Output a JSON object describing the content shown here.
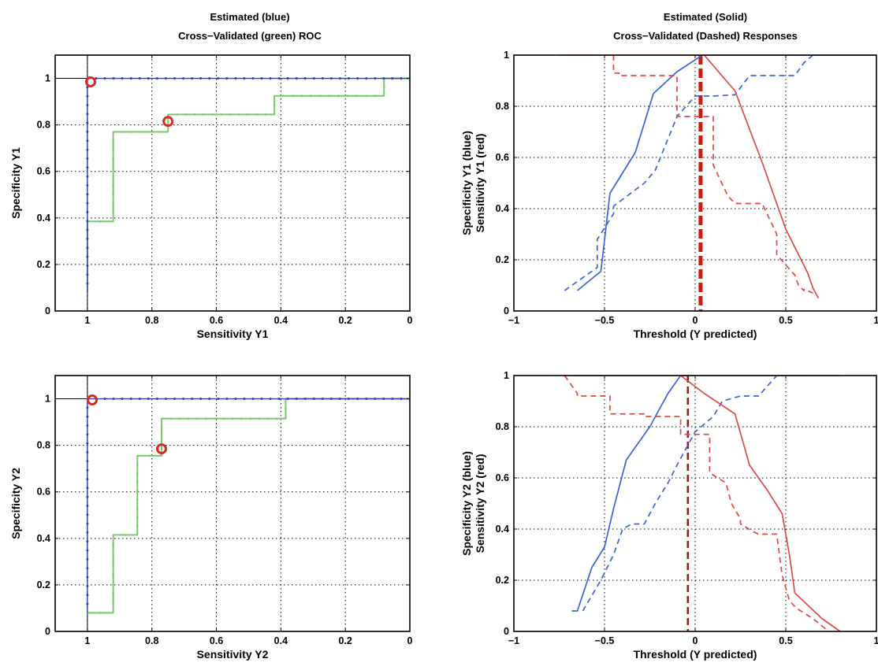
{
  "roc_title": {
    "line1": "Estimated (blue)",
    "line2": "Cross−Validated (green) ROC"
  },
  "resp_title": {
    "line1": "Estimated (Solid)",
    "line2": "Cross−Validated (Dashed) Responses"
  },
  "colors": {
    "estimated_roc": "#2a3fbf",
    "crossval_roc": "#79c96b",
    "specificity": "#3b63d6",
    "sensitivity": "#e04848",
    "marker": "#d82a20",
    "threshold_y1": "#cc1a10",
    "threshold_y2": "#a01a10"
  },
  "chart_data": [
    {
      "type": "line",
      "xlabel": "Sensitivity Y1",
      "ylabel": "Specificity Y1",
      "xlim": [
        1.1,
        0
      ],
      "ylim": [
        0,
        1.1
      ],
      "xticks": [
        "1",
        "0.8",
        "0.6",
        "0.4",
        "0.2",
        "0"
      ],
      "yticks": [
        "0",
        "0.2",
        "0.4",
        "0.6",
        "0.8",
        "1"
      ],
      "grid": true,
      "series": [
        {
          "style": "estimated",
          "x": [
            1,
            1,
            0
          ],
          "y": [
            0.08,
            1,
            1
          ]
        },
        {
          "style": "crossval",
          "x": [
            1,
            1,
            0.92,
            0.92,
            0.75,
            0.75,
            0.42,
            0.42,
            0.08,
            0.08,
            0
          ],
          "y": [
            0.08,
            0.385,
            0.385,
            0.77,
            0.77,
            0.845,
            0.845,
            0.925,
            0.925,
            1,
            1
          ]
        }
      ],
      "markers": [
        {
          "x": 0.99,
          "y": 0.985
        },
        {
          "x": 0.75,
          "y": 0.815
        }
      ]
    },
    {
      "type": "line",
      "xlabel": "Threshold (Y predicted)",
      "ylabel_line1": "Specificity Y1  (blue)",
      "ylabel_line2": "Sensitivity Y1  (red)",
      "xlim": [
        -1,
        1
      ],
      "ylim": [
        0,
        1
      ],
      "xticks": [
        "−1",
        "−0.5",
        "0",
        "0.5",
        "1"
      ],
      "yticks": [
        "0",
        "0.2",
        "0.4",
        "0.6",
        "0.8",
        "1"
      ],
      "grid": true,
      "series": [
        {
          "style": "spec-solid",
          "x": [
            -0.65,
            -0.52,
            -0.47,
            -0.33,
            -0.23,
            -0.1,
            0.04,
            1
          ],
          "y": [
            0.08,
            0.155,
            0.46,
            0.62,
            0.85,
            0.935,
            1,
            1
          ]
        },
        {
          "style": "spec-dashed",
          "x": [
            -0.72,
            -0.54,
            -0.54,
            -0.45,
            -0.45,
            -0.28,
            -0.22,
            -0.1,
            0,
            0.1,
            0.22,
            0.3,
            0.45,
            0.55,
            0.6,
            0.65
          ],
          "y": [
            0.08,
            0.17,
            0.28,
            0.38,
            0.41,
            0.5,
            0.55,
            0.76,
            0.84,
            0.84,
            0.845,
            0.92,
            0.92,
            0.92,
            0.97,
            1
          ]
        },
        {
          "style": "sens-solid",
          "x": [
            -0.75,
            0.05,
            0.22,
            0.37,
            0.5,
            0.62,
            0.65,
            0.68
          ],
          "y": [
            1,
            1,
            0.86,
            0.58,
            0.32,
            0.15,
            0.09,
            0.05
          ]
        },
        {
          "style": "sens-dashed",
          "x": [
            -0.45,
            -0.45,
            -0.42,
            -0.42,
            -0.1,
            -0.1,
            -0.05,
            0.1,
            0.1,
            0.18,
            0.22,
            0.22,
            0.37,
            0.45,
            0.45,
            0.55,
            0.57,
            0.6,
            0.6,
            0.65
          ],
          "y": [
            1,
            0.93,
            0.93,
            0.92,
            0.92,
            0.76,
            0.76,
            0.76,
            0.57,
            0.45,
            0.42,
            0.42,
            0.42,
            0.3,
            0.22,
            0.14,
            0.1,
            0.08,
            0.085,
            0.07
          ]
        }
      ],
      "threshold_x": 0.03
    },
    {
      "type": "line",
      "xlabel": "Sensitivity Y2",
      "ylabel": "Specificity Y2",
      "xlim": [
        1.1,
        0
      ],
      "ylim": [
        0,
        1.1
      ],
      "xticks": [
        "1",
        "0.8",
        "0.6",
        "0.4",
        "0.2",
        "0"
      ],
      "yticks": [
        "0",
        "0.2",
        "0.4",
        "0.6",
        "0.8",
        "1"
      ],
      "grid": true,
      "series": [
        {
          "style": "estimated",
          "x": [
            1,
            1,
            0
          ],
          "y": [
            0.08,
            1,
            1
          ]
        },
        {
          "style": "crossval",
          "x": [
            1,
            0.92,
            0.92,
            0.845,
            0.845,
            0.77,
            0.77,
            0.385,
            0.385,
            0
          ],
          "y": [
            0.08,
            0.08,
            0.415,
            0.415,
            0.755,
            0.755,
            0.915,
            0.915,
            1,
            1
          ]
        }
      ],
      "markers": [
        {
          "x": 0.985,
          "y": 0.995
        },
        {
          "x": 0.77,
          "y": 0.785
        }
      ]
    },
    {
      "type": "line",
      "xlabel": "Threshold (Y predicted)",
      "ylabel_line1": "Specificity Y2  (blue)",
      "ylabel_line2": "Sensitivity Y2  (red)",
      "xlim": [
        -1,
        1
      ],
      "ylim": [
        0,
        1
      ],
      "xticks": [
        "−1",
        "−0.5",
        "0",
        "0.5",
        "1"
      ],
      "yticks": [
        "0",
        "0.2",
        "0.4",
        "0.6",
        "0.8",
        "1"
      ],
      "grid": true,
      "series": [
        {
          "style": "spec-solid",
          "x": [
            -0.68,
            -0.65,
            -0.57,
            -0.5,
            -0.45,
            -0.38,
            -0.25,
            -0.15,
            -0.08,
            0.5,
            0.6,
            0.7,
            0.8
          ],
          "y": [
            0.08,
            0.08,
            0.25,
            0.33,
            0.48,
            0.67,
            0.8,
            0.93,
            1,
            1,
            1,
            1,
            1
          ]
        },
        {
          "style": "spec-dashed",
          "x": [
            -0.62,
            -0.52,
            -0.45,
            -0.4,
            -0.35,
            -0.28,
            -0.22,
            -0.15,
            -0.1,
            0,
            0.1,
            0.15,
            0.25,
            0.35,
            0.45,
            0.55,
            0.6
          ],
          "y": [
            0.08,
            0.2,
            0.3,
            0.4,
            0.42,
            0.42,
            0.5,
            0.58,
            0.65,
            0.78,
            0.84,
            0.9,
            0.92,
            0.92,
            1,
            1,
            1
          ]
        },
        {
          "style": "sens-solid",
          "x": [
            -0.7,
            -0.08,
            0.05,
            0.22,
            0.3,
            0.4,
            0.48,
            0.52,
            0.55,
            0.7,
            0.8
          ],
          "y": [
            1,
            1,
            0.93,
            0.85,
            0.65,
            0.55,
            0.46,
            0.3,
            0.15,
            0.05,
            0
          ]
        },
        {
          "style": "sens-dashed",
          "x": [
            -0.72,
            -0.65,
            -0.65,
            -0.47,
            -0.47,
            -0.28,
            -0.28,
            -0.08,
            -0.08,
            0.08,
            0.08,
            0.17,
            0.2,
            0.25,
            0.25,
            0.32,
            0.35,
            0.45,
            0.48,
            0.52,
            0.56,
            0.65,
            0.72
          ],
          "y": [
            1,
            0.93,
            0.92,
            0.92,
            0.85,
            0.85,
            0.84,
            0.84,
            0.77,
            0.77,
            0.62,
            0.58,
            0.5,
            0.44,
            0.42,
            0.39,
            0.38,
            0.38,
            0.22,
            0.12,
            0.09,
            0.05,
            0.01
          ]
        }
      ],
      "threshold_x": -0.04
    }
  ]
}
